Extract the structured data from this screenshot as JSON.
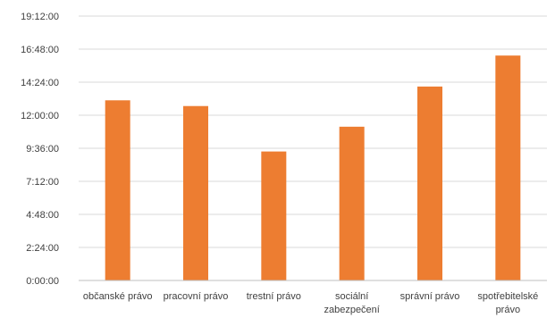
{
  "chart_data": {
    "type": "bar",
    "title": "",
    "xlabel": "",
    "ylabel": "",
    "categories": [
      "občanské právo",
      "pracovní právo",
      "trestní právo",
      "sociální zabezpečení",
      "správní právo",
      "spotřebitelské právo"
    ],
    "category_label_lines": [
      [
        "občanské právo"
      ],
      [
        "pracovní právo"
      ],
      [
        "trestní právo"
      ],
      [
        "sociální",
        "zabezpečení"
      ],
      [
        "správní právo"
      ],
      [
        "spotřebitelské",
        "právo"
      ]
    ],
    "values_hhmm": [
      "13:05",
      "12:40",
      "9:22",
      "11:10",
      "14:05",
      "16:20"
    ],
    "y_ticks": [
      "0:00:00",
      "2:24:00",
      "4:48:00",
      "7:12:00",
      "9:36:00",
      "12:00:00",
      "14:24:00",
      "16:48:00",
      "19:12:00"
    ],
    "ylim": [
      "0:00:00",
      "19:12:00"
    ],
    "grid": true,
    "legend": "none",
    "bar_color": "#ED7D31"
  }
}
